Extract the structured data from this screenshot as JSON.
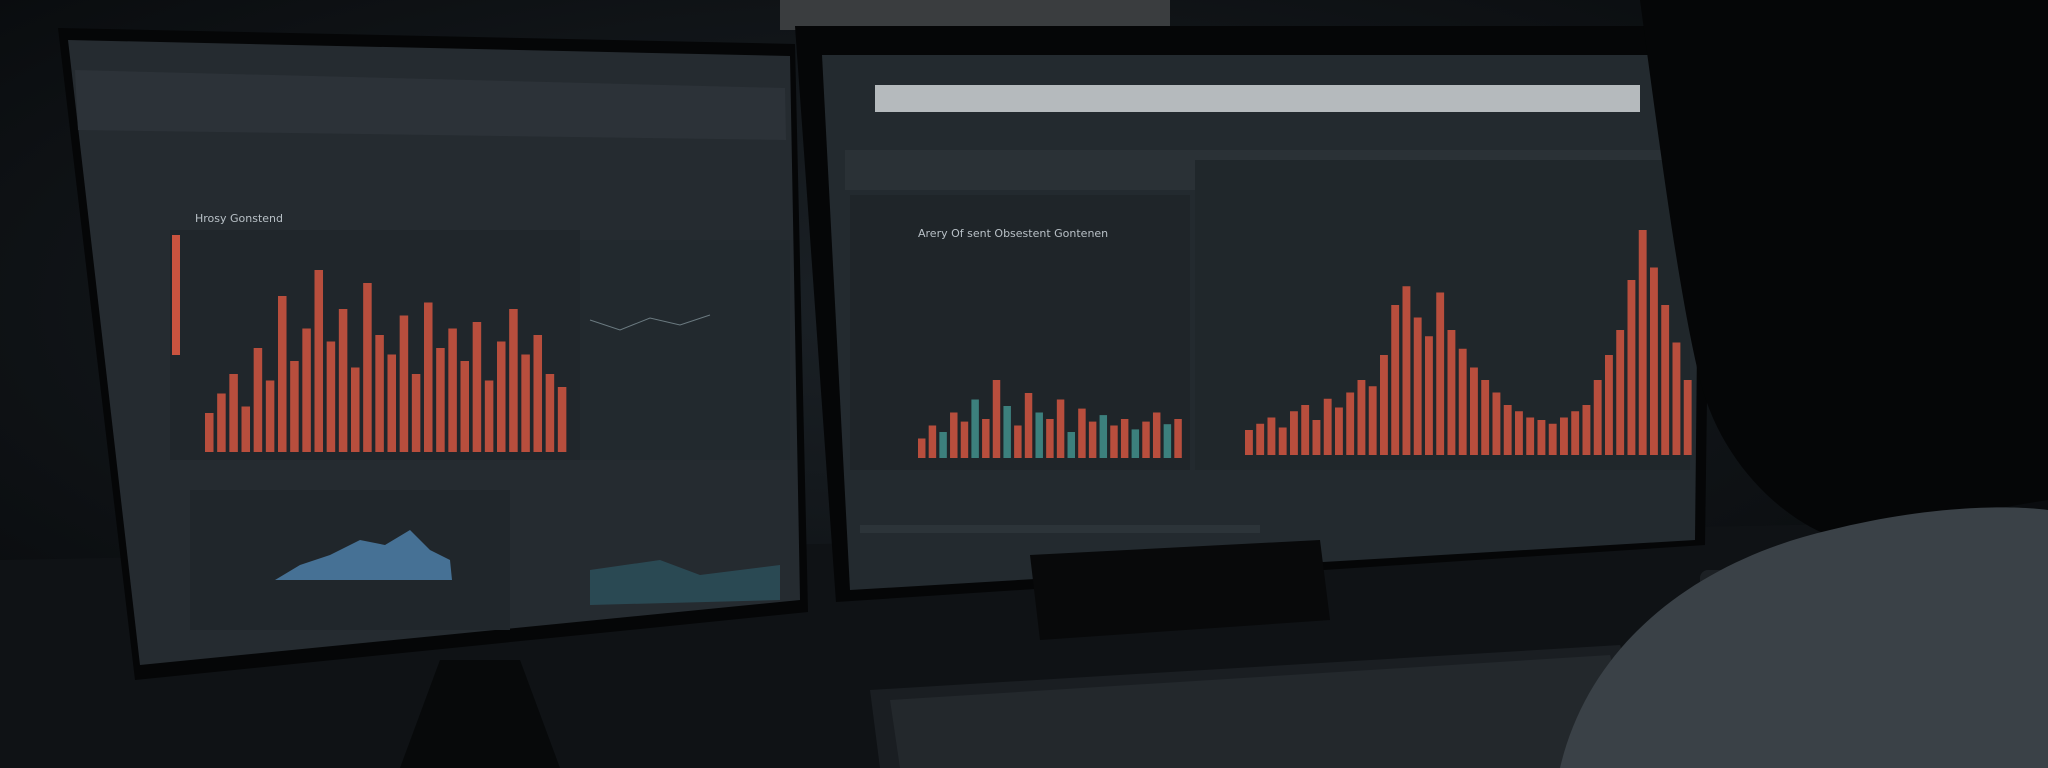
{
  "left_screen": {
    "title": "Hrosy Gonstend",
    "bar_color": "#c9533f",
    "bars": [
      30,
      45,
      60,
      35,
      80,
      55,
      120,
      70,
      95,
      140,
      85,
      110,
      65,
      130,
      90,
      75,
      105,
      60,
      115,
      80,
      95,
      70,
      100,
      55,
      85,
      110,
      75,
      90,
      60,
      50
    ]
  },
  "right_screen": {
    "title": "Arery Of sent Obsestent Gontenen",
    "bar_color": "#c9533f",
    "alt_color": "#3f8b86",
    "bars_center": [
      15,
      25,
      20,
      35,
      28,
      45,
      30,
      60,
      40,
      25,
      50,
      35,
      30,
      45,
      20,
      38,
      28,
      33,
      25,
      30,
      22,
      28,
      35,
      26,
      30
    ],
    "bars_right": [
      20,
      25,
      30,
      22,
      35,
      40,
      28,
      45,
      38,
      50,
      60,
      55,
      80,
      120,
      135,
      110,
      95,
      130,
      100,
      85,
      70,
      60,
      50,
      40,
      35,
      30,
      28,
      25,
      30,
      35,
      40,
      60,
      80,
      100,
      140,
      180,
      150,
      120,
      90,
      60
    ]
  }
}
